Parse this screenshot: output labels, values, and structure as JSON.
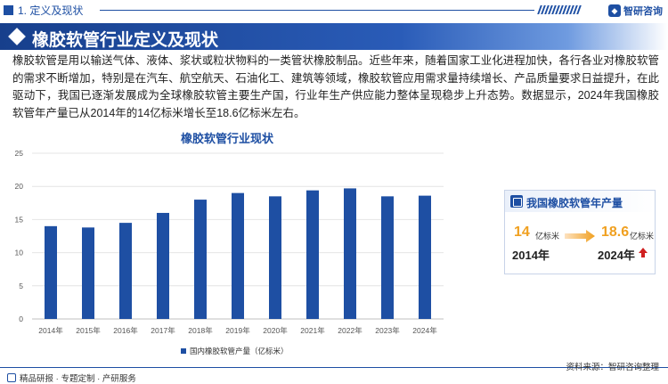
{
  "header": {
    "section": "1. 定义及现状",
    "logo": "智研咨询"
  },
  "banner": {
    "title": "橡胶软管行业定义及现状"
  },
  "intro": "橡胶软管是用以输送气体、液体、浆状或粒状物料的一类管状橡胶制品。近些年来，随着国家工业化进程加快，各行各业对橡胶软管的需求不断增加，特别是在汽车、航空航天、石油化工、建筑等领域，橡胶软管应用需求量持续增长、产品质量要求日益提升，在此驱动下，我国已逐渐发展成为全球橡胶软管主要生产国，行业年生产供应能力整体呈现稳步上升态势。数据显示，2024年我国橡胶软管年产量已从2014年的14亿标米增长至18.6亿标米左右。",
  "chart_data": {
    "type": "bar",
    "title": "橡胶软管行业现状",
    "categories": [
      "2014年",
      "2015年",
      "2016年",
      "2017年",
      "2018年",
      "2019年",
      "2020年",
      "2021年",
      "2022年",
      "2023年",
      "2024年"
    ],
    "series": [
      {
        "name": "国内橡胶软管产量（亿标米）",
        "values": [
          14.0,
          13.8,
          14.5,
          16.0,
          18.0,
          19.0,
          18.5,
          19.4,
          19.7,
          18.5,
          18.6
        ]
      }
    ],
    "ylim": [
      0,
      25
    ],
    "yticks": [
      0,
      5,
      10,
      15,
      20,
      25
    ],
    "grid": true,
    "legend_position": "bottom",
    "color": "#1e4fa3"
  },
  "card": {
    "title": "我国橡胶软管年产量",
    "start_value": "14",
    "start_unit": "亿标米",
    "start_year": "2014年",
    "end_value": "18.6",
    "end_unit": "亿标米",
    "end_year": "2024年"
  },
  "footer": {
    "left": "精品研报 · 专题定制 · 产研服务",
    "source": "资料来源：智研咨询整理"
  }
}
